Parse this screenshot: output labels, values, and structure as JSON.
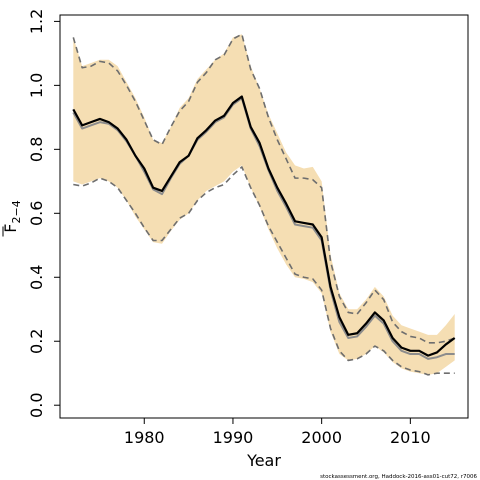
{
  "chart_data": {
    "type": "line",
    "title": "",
    "xlabel": "Year",
    "ylabel_base": "F",
    "ylabel_sub": "2−4",
    "xlim": [
      1970.5,
      2016.5
    ],
    "ylim": [
      -0.04,
      1.22
    ],
    "xticks": [
      1980,
      1990,
      2000,
      2010
    ],
    "yticks": [
      0.0,
      0.2,
      0.4,
      0.6,
      0.8,
      1.0,
      1.2
    ],
    "ytick_labels": [
      "0.0",
      "0.2",
      "0.4",
      "0.6",
      "0.8",
      "1.0",
      "1.2"
    ],
    "grid": false,
    "legend": "none",
    "colors": {
      "band": "#f5deb3",
      "main_line": "#000000",
      "alt_line": "#8c8c8c",
      "bound_line": "#6e6e6e"
    },
    "x": [
      1972,
      1973,
      1974,
      1975,
      1976,
      1977,
      1978,
      1979,
      1980,
      1981,
      1982,
      1983,
      1984,
      1985,
      1986,
      1987,
      1988,
      1989,
      1990,
      1991,
      1992,
      1993,
      1994,
      1995,
      1996,
      1997,
      1998,
      1999,
      2000,
      2001,
      2002,
      2003,
      2004,
      2005,
      2006,
      2007,
      2008,
      2009,
      2010,
      2011,
      2012,
      2013,
      2014,
      2015
    ],
    "series": [
      {
        "role": "estimate",
        "values": [
          0.925,
          0.875,
          0.885,
          0.895,
          0.885,
          0.865,
          0.83,
          0.78,
          0.74,
          0.68,
          0.67,
          0.715,
          0.76,
          0.78,
          0.835,
          0.86,
          0.89,
          0.905,
          0.945,
          0.965,
          0.87,
          0.82,
          0.74,
          0.68,
          0.63,
          0.575,
          0.57,
          0.565,
          0.525,
          0.37,
          0.275,
          0.22,
          0.225,
          0.255,
          0.29,
          0.265,
          0.21,
          0.18,
          0.17,
          0.17,
          0.155,
          0.165,
          0.19,
          0.21
        ]
      },
      {
        "role": "alternate",
        "values": [
          0.915,
          0.865,
          0.875,
          0.885,
          0.88,
          0.86,
          0.825,
          0.78,
          0.73,
          0.675,
          0.66,
          0.71,
          0.755,
          0.78,
          0.83,
          0.855,
          0.885,
          0.9,
          0.94,
          0.96,
          0.865,
          0.81,
          0.735,
          0.67,
          0.62,
          0.565,
          0.56,
          0.555,
          0.515,
          0.36,
          0.26,
          0.21,
          0.215,
          0.245,
          0.28,
          0.255,
          0.2,
          0.17,
          0.16,
          0.16,
          0.145,
          0.15,
          0.16,
          0.16
        ]
      },
      {
        "role": "upper",
        "values": [
          1.15,
          1.055,
          1.06,
          1.075,
          1.07,
          1.045,
          1.0,
          0.95,
          0.89,
          0.83,
          0.815,
          0.87,
          0.92,
          0.95,
          1.01,
          1.04,
          1.08,
          1.095,
          1.145,
          1.16,
          1.05,
          0.99,
          0.9,
          0.83,
          0.77,
          0.71,
          0.71,
          0.705,
          0.68,
          0.45,
          0.34,
          0.29,
          0.285,
          0.32,
          0.36,
          0.33,
          0.26,
          0.23,
          0.215,
          0.21,
          0.195,
          0.195,
          0.2,
          0.21
        ]
      },
      {
        "role": "lower",
        "values": [
          0.69,
          0.685,
          0.695,
          0.71,
          0.7,
          0.68,
          0.64,
          0.6,
          0.555,
          0.515,
          0.515,
          0.55,
          0.585,
          0.6,
          0.64,
          0.665,
          0.68,
          0.69,
          0.72,
          0.745,
          0.68,
          0.625,
          0.56,
          0.51,
          0.46,
          0.41,
          0.4,
          0.395,
          0.36,
          0.24,
          0.17,
          0.14,
          0.145,
          0.16,
          0.185,
          0.17,
          0.14,
          0.12,
          0.11,
          0.105,
          0.095,
          0.1,
          0.1,
          0.1
        ]
      },
      {
        "role": "band_upper",
        "values": [
          1.15,
          1.06,
          1.07,
          1.08,
          1.08,
          1.06,
          1.01,
          0.96,
          0.9,
          0.83,
          0.82,
          0.87,
          0.93,
          0.96,
          1.02,
          1.05,
          1.08,
          1.1,
          1.15,
          1.16,
          1.06,
          0.99,
          0.91,
          0.85,
          0.79,
          0.75,
          0.74,
          0.745,
          0.7,
          0.47,
          0.35,
          0.3,
          0.3,
          0.33,
          0.37,
          0.34,
          0.28,
          0.25,
          0.24,
          0.23,
          0.22,
          0.22,
          0.25,
          0.285
        ]
      },
      {
        "role": "band_lower",
        "values": [
          0.7,
          0.69,
          0.7,
          0.71,
          0.7,
          0.68,
          0.64,
          0.59,
          0.55,
          0.51,
          0.505,
          0.545,
          0.58,
          0.6,
          0.64,
          0.67,
          0.685,
          0.7,
          0.73,
          0.75,
          0.68,
          0.62,
          0.55,
          0.49,
          0.44,
          0.4,
          0.395,
          0.385,
          0.35,
          0.23,
          0.16,
          0.14,
          0.145,
          0.16,
          0.185,
          0.165,
          0.135,
          0.115,
          0.105,
          0.1,
          0.095,
          0.1,
          0.12,
          0.14
        ]
      }
    ],
    "footnote": "stockassessment.org, Haddock-2016-ass01-cut72, r7006"
  }
}
